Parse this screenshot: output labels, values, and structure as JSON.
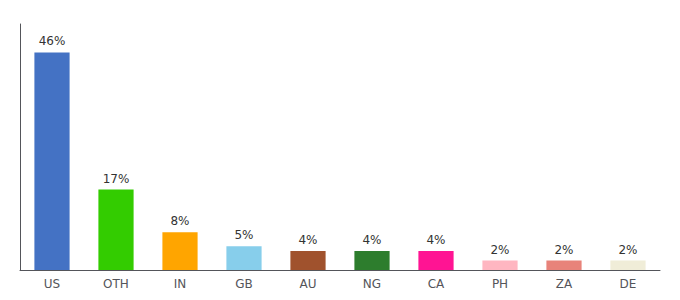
{
  "chart_data": {
    "type": "bar",
    "categories": [
      "US",
      "OTH",
      "IN",
      "GB",
      "AU",
      "NG",
      "CA",
      "PH",
      "ZA",
      "DE"
    ],
    "values": [
      46,
      17,
      8,
      5,
      4,
      4,
      4,
      2,
      2,
      2
    ],
    "value_labels": [
      "46%",
      "17%",
      "8%",
      "5%",
      "4%",
      "4%",
      "4%",
      "2%",
      "2%",
      "2%"
    ],
    "colors": [
      "#4472C4",
      "#33CC00",
      "#FFA500",
      "#87CEEB",
      "#A0522D",
      "#2D7D2D",
      "#FF1493",
      "#FFB6C1",
      "#E8837A",
      "#F0EDD8"
    ],
    "ylim": [
      0,
      52
    ],
    "yticks": [],
    "grid": false,
    "data_labels": true,
    "tick_labels": "x"
  }
}
